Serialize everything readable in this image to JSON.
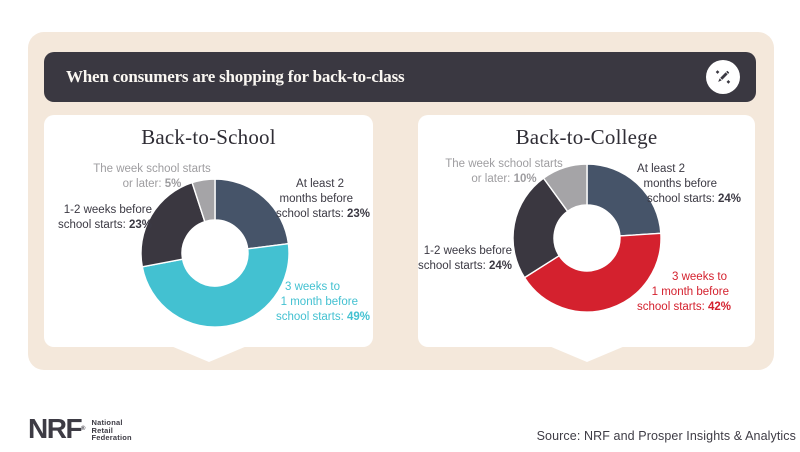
{
  "header": {
    "title": "When consumers are shopping for back-to-class",
    "icon": "pencil-design-icon"
  },
  "colors": {
    "background_panel": "#f4e8db",
    "header_bar": "#3a3841",
    "slate_blue": "#465469",
    "teal": "#43c1d1",
    "red": "#d4212e",
    "charcoal": "#3a3740",
    "gray_slice": "#a5a4a7",
    "gray_text": "#9e9da0",
    "dark_text": "#3b3943"
  },
  "charts": [
    {
      "title": "Back-to-School",
      "labels": {
        "week_of": {
          "line1": "The week school starts",
          "line2_prefix": "or later: ",
          "pct": "5%"
        },
        "at_least": {
          "line1": "At least 2",
          "line2": "months before",
          "line3_prefix": "school starts: ",
          "pct": "23%"
        },
        "one_two": {
          "line1": "1-2 weeks before",
          "line2_prefix": "school starts: ",
          "pct": "23%"
        },
        "three_weeks": {
          "line1": "3 weeks to",
          "line2": "1 month before",
          "line3_prefix": "school starts: ",
          "pct": "49%"
        }
      }
    },
    {
      "title": "Back-to-College",
      "labels": {
        "week_of": {
          "line1": "The week school starts",
          "line2_prefix": "or later: ",
          "pct": "10%"
        },
        "at_least": {
          "line1": "At least 2",
          "line2": "months before",
          "line3_prefix": "school starts: ",
          "pct": "24%"
        },
        "one_two": {
          "line1": "1-2 weeks before",
          "line2_prefix": "school starts: ",
          "pct": "24%"
        },
        "three_weeks": {
          "line1": "3 weeks to",
          "line2": "1 month before",
          "line3_prefix": "school starts: ",
          "pct": "42%"
        }
      }
    }
  ],
  "chart_data": [
    {
      "type": "pie",
      "subtype": "donut",
      "title": "Back-to-School",
      "start_angle_deg": 0,
      "direction": "clockwise",
      "segments": [
        {
          "label": "At least 2 months before school starts",
          "value": 23,
          "color": "#465469"
        },
        {
          "label": "3 weeks to 1 month before school starts",
          "value": 49,
          "color": "#43c1d1"
        },
        {
          "label": "1-2 weeks before school starts",
          "value": 23,
          "color": "#3a3740"
        },
        {
          "label": "The week school starts or later",
          "value": 5,
          "color": "#a5a4a7"
        }
      ]
    },
    {
      "type": "pie",
      "subtype": "donut",
      "title": "Back-to-College",
      "start_angle_deg": 0,
      "direction": "clockwise",
      "segments": [
        {
          "label": "At least 2 months before school starts",
          "value": 24,
          "color": "#465469"
        },
        {
          "label": "3 weeks to 1 month before school starts",
          "value": 42,
          "color": "#d4212e"
        },
        {
          "label": "1-2 weeks before school starts",
          "value": 24,
          "color": "#3a3740"
        },
        {
          "label": "The week school starts or later",
          "value": 10,
          "color": "#a5a4a7"
        }
      ]
    }
  ],
  "footer": {
    "logo_text": "NRF",
    "logo_reg": "®",
    "logo_sub_lines": [
      "National",
      "Retail",
      "Federation"
    ],
    "source": "Source: NRF and Prosper Insights & Analytics"
  }
}
